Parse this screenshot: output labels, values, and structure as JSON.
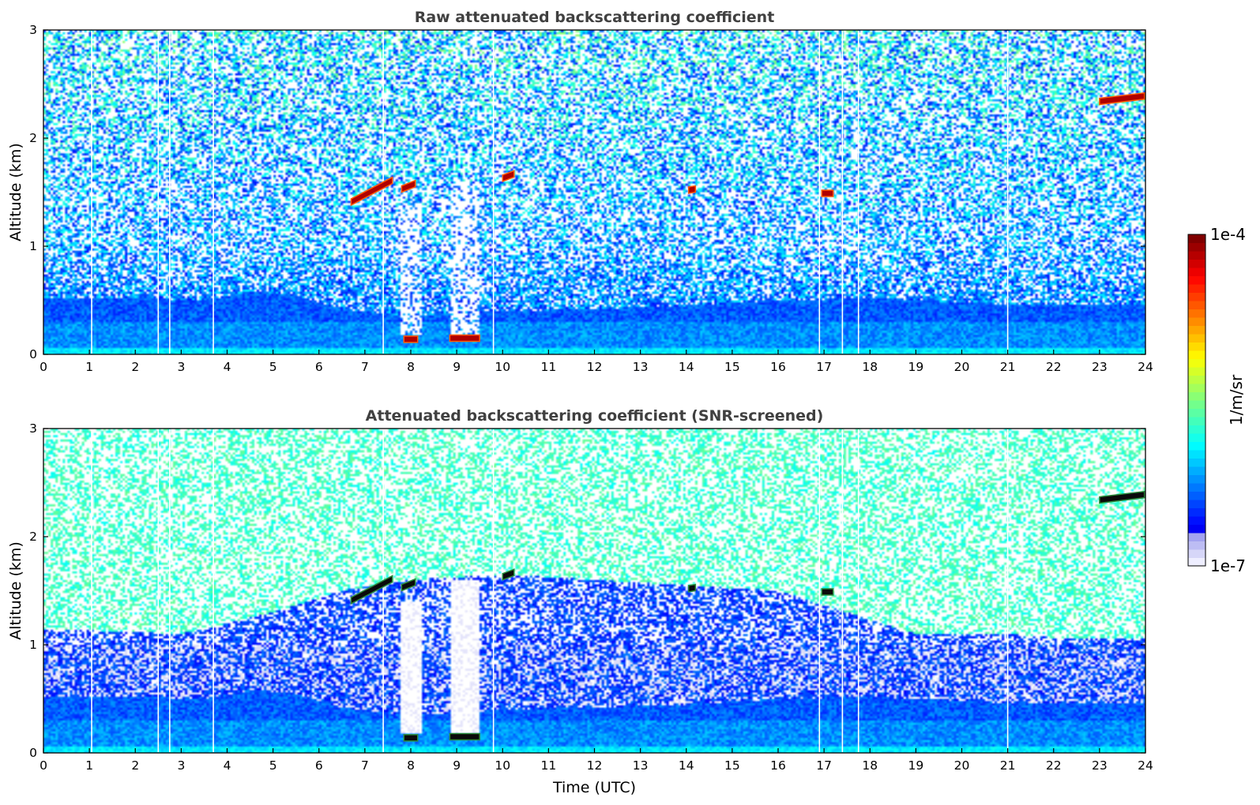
{
  "chart_data": [
    {
      "type": "heatmap",
      "title": "Raw attenuated backscattering coefficient",
      "xlabel": "",
      "ylabel": "Altitude (km)",
      "xlim": [
        0,
        24
      ],
      "ylim": [
        0,
        3
      ],
      "x_ticks": [
        "0",
        "1",
        "2",
        "3",
        "4",
        "5",
        "6",
        "7",
        "8",
        "9",
        "10",
        "11",
        "12",
        "13",
        "14",
        "15",
        "16",
        "17",
        "18",
        "19",
        "20",
        "21",
        "22",
        "23",
        "24"
      ],
      "y_ticks": [
        "0",
        "1",
        "2",
        "3"
      ],
      "grid": false,
      "screened": false,
      "data_gap_times": [
        1.05,
        2.5,
        2.75,
        3.7,
        7.4,
        9.8,
        16.9,
        17.4,
        17.75,
        21.0
      ],
      "cloud_layers": [
        {
          "t_start": 6.7,
          "t_end": 7.6,
          "alt_start": 1.38,
          "alt_end": 1.58
        },
        {
          "t_start": 7.8,
          "t_end": 8.1,
          "alt_start": 1.5,
          "alt_end": 1.55
        },
        {
          "t_start": 10.0,
          "t_end": 10.25,
          "alt_start": 1.6,
          "alt_end": 1.64
        },
        {
          "t_start": 14.05,
          "t_end": 14.2,
          "alt_start": 1.49,
          "alt_end": 1.5
        },
        {
          "t_start": 16.95,
          "t_end": 17.2,
          "alt_start": 1.46,
          "alt_end": 1.46
        },
        {
          "t_start": 23.0,
          "t_end": 23.98,
          "alt_start": 2.31,
          "alt_end": 2.36
        },
        {
          "t_start": 7.85,
          "t_end": 8.15,
          "alt_start": 0.11,
          "alt_end": 0.11
        },
        {
          "t_start": 8.85,
          "t_end": 9.5,
          "alt_start": 0.12,
          "alt_end": 0.12
        }
      ],
      "precipitation_shafts": [
        {
          "t_start": 7.8,
          "t_end": 8.25,
          "alt_top": 1.4
        },
        {
          "t_start": 8.85,
          "t_end": 9.5,
          "alt_top": 1.6
        }
      ],
      "boundary_layer_top_km": [
        [
          0,
          0.52
        ],
        [
          2,
          0.52
        ],
        [
          3.5,
          0.5
        ],
        [
          4.5,
          0.58
        ],
        [
          5.5,
          0.55
        ],
        [
          6.5,
          0.42
        ],
        [
          8,
          0.35
        ],
        [
          10,
          0.4
        ],
        [
          12,
          0.42
        ],
        [
          14,
          0.45
        ],
        [
          16,
          0.5
        ],
        [
          18,
          0.52
        ],
        [
          20,
          0.48
        ],
        [
          22,
          0.45
        ],
        [
          24,
          0.45
        ]
      ]
    },
    {
      "type": "heatmap",
      "title": "Attenuated backscattering coefficient (SNR-screened)",
      "xlabel": "Time (UTC)",
      "ylabel": "Altitude (km)",
      "xlim": [
        0,
        24
      ],
      "ylim": [
        0,
        3
      ],
      "x_ticks": [
        "0",
        "1",
        "2",
        "3",
        "4",
        "5",
        "6",
        "7",
        "8",
        "9",
        "10",
        "11",
        "12",
        "13",
        "14",
        "15",
        "16",
        "17",
        "18",
        "19",
        "20",
        "21",
        "22",
        "23",
        "24"
      ],
      "y_ticks": [
        "0",
        "1",
        "2",
        "3"
      ],
      "grid": false,
      "screened": true,
      "data_gap_times": [
        1.05,
        2.5,
        2.75,
        3.7,
        7.4,
        9.8,
        16.9,
        17.4,
        17.75,
        21.0
      ],
      "cloud_layers": [
        {
          "t_start": 6.7,
          "t_end": 7.6,
          "alt_start": 1.38,
          "alt_end": 1.58
        },
        {
          "t_start": 7.8,
          "t_end": 8.1,
          "alt_start": 1.5,
          "alt_end": 1.55
        },
        {
          "t_start": 10.0,
          "t_end": 10.25,
          "alt_start": 1.6,
          "alt_end": 1.64
        },
        {
          "t_start": 14.05,
          "t_end": 14.2,
          "alt_start": 1.49,
          "alt_end": 1.5
        },
        {
          "t_start": 16.95,
          "t_end": 17.2,
          "alt_start": 1.46,
          "alt_end": 1.46
        },
        {
          "t_start": 23.0,
          "t_end": 23.98,
          "alt_start": 2.31,
          "alt_end": 2.36
        },
        {
          "t_start": 7.85,
          "t_end": 8.15,
          "alt_start": 0.11,
          "alt_end": 0.11
        },
        {
          "t_start": 8.85,
          "t_end": 9.5,
          "alt_start": 0.12,
          "alt_end": 0.12
        }
      ],
      "precipitation_shafts": [
        {
          "t_start": 7.8,
          "t_end": 8.25,
          "alt_top": 1.4
        },
        {
          "t_start": 8.85,
          "t_end": 9.5,
          "alt_top": 1.6
        }
      ],
      "boundary_layer_top_km": [
        [
          0,
          0.52
        ],
        [
          2,
          0.52
        ],
        [
          3.5,
          0.5
        ],
        [
          4.5,
          0.58
        ],
        [
          5.5,
          0.55
        ],
        [
          6.5,
          0.42
        ],
        [
          8,
          0.35
        ],
        [
          10,
          0.4
        ],
        [
          12,
          0.42
        ],
        [
          14,
          0.45
        ],
        [
          16,
          0.5
        ],
        [
          18,
          0.52
        ],
        [
          20,
          0.48
        ],
        [
          22,
          0.45
        ],
        [
          24,
          0.45
        ]
      ],
      "screened_aerosol_top_km": [
        [
          0,
          1.15
        ],
        [
          3,
          1.1
        ],
        [
          5,
          1.3
        ],
        [
          6.5,
          1.5
        ],
        [
          8,
          1.6
        ],
        [
          10,
          1.65
        ],
        [
          12,
          1.6
        ],
        [
          14,
          1.55
        ],
        [
          16,
          1.5
        ],
        [
          17.5,
          1.3
        ],
        [
          19,
          1.1
        ],
        [
          21,
          1.1
        ],
        [
          22.5,
          1.05
        ],
        [
          24,
          1.05
        ]
      ]
    }
  ],
  "colorbar": {
    "label": "1/m/sr",
    "max_label": "1e-4",
    "min_label": "1e-7",
    "scale": "log",
    "colormap": "jet",
    "low_end_colors": [
      "#eeeeff",
      "#d6d6f8",
      "#bdbdf4",
      "#a3a3f0"
    ]
  }
}
